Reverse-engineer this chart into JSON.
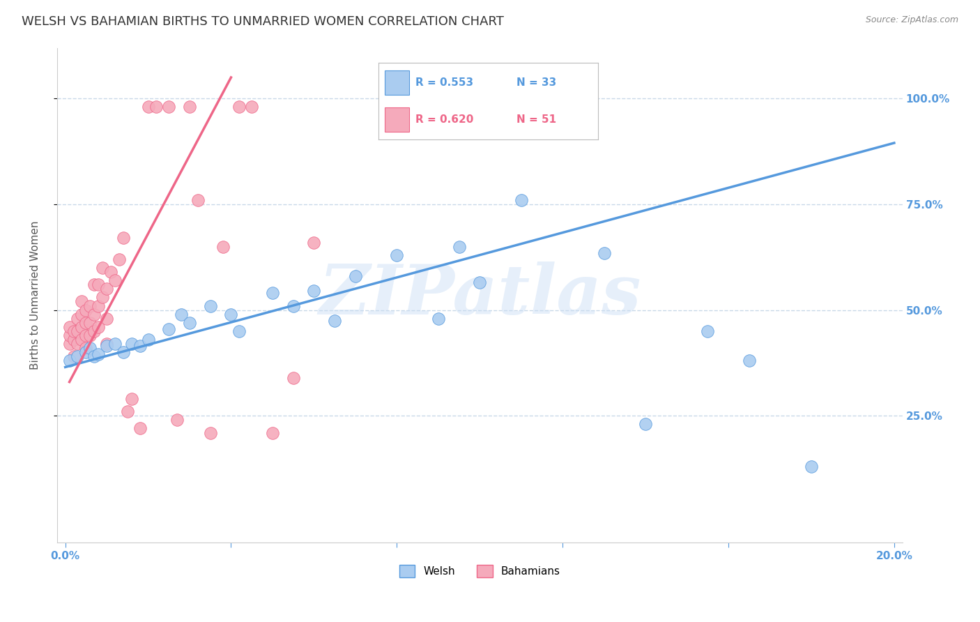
{
  "title": "WELSH VS BAHAMIAN BIRTHS TO UNMARRIED WOMEN CORRELATION CHART",
  "source": "Source: ZipAtlas.com",
  "ylabel": "Births to Unmarried Women",
  "xlim": [
    -0.002,
    0.202
  ],
  "ylim": [
    -0.05,
    1.12
  ],
  "yticks": [
    0.25,
    0.5,
    0.75,
    1.0
  ],
  "ytick_labels": [
    "25.0%",
    "50.0%",
    "75.0%",
    "100.0%"
  ],
  "xtick_positions": [
    0.0,
    0.04,
    0.08,
    0.12,
    0.16,
    0.2
  ],
  "xtick_labels": [
    "0.0%",
    "",
    "",
    "",
    "",
    "20.0%"
  ],
  "welsh_color": "#aaccf0",
  "bahamian_color": "#f5aabb",
  "welsh_line_color": "#5599dd",
  "bahamian_line_color": "#ee6688",
  "welsh_R": 0.553,
  "welsh_N": 33,
  "bahamian_R": 0.62,
  "bahamian_N": 51,
  "welsh_scatter_x": [
    0.001,
    0.003,
    0.005,
    0.006,
    0.007,
    0.008,
    0.01,
    0.012,
    0.014,
    0.016,
    0.018,
    0.02,
    0.025,
    0.028,
    0.03,
    0.035,
    0.04,
    0.042,
    0.05,
    0.055,
    0.06,
    0.065,
    0.07,
    0.08,
    0.09,
    0.095,
    0.1,
    0.11,
    0.13,
    0.14,
    0.155,
    0.165,
    0.18
  ],
  "welsh_scatter_y": [
    0.38,
    0.39,
    0.4,
    0.41,
    0.39,
    0.395,
    0.415,
    0.42,
    0.4,
    0.42,
    0.415,
    0.43,
    0.455,
    0.49,
    0.47,
    0.51,
    0.49,
    0.45,
    0.54,
    0.51,
    0.545,
    0.475,
    0.58,
    0.63,
    0.48,
    0.65,
    0.565,
    0.76,
    0.635,
    0.23,
    0.45,
    0.38,
    0.13
  ],
  "bahamian_scatter_x": [
    0.001,
    0.001,
    0.001,
    0.002,
    0.002,
    0.002,
    0.003,
    0.003,
    0.003,
    0.004,
    0.004,
    0.004,
    0.004,
    0.005,
    0.005,
    0.005,
    0.005,
    0.006,
    0.006,
    0.006,
    0.007,
    0.007,
    0.007,
    0.008,
    0.008,
    0.008,
    0.009,
    0.009,
    0.01,
    0.01,
    0.01,
    0.011,
    0.012,
    0.013,
    0.014,
    0.015,
    0.016,
    0.018,
    0.02,
    0.022,
    0.025,
    0.027,
    0.03,
    0.032,
    0.035,
    0.038,
    0.042,
    0.045,
    0.05,
    0.055,
    0.06
  ],
  "bahamian_scatter_y": [
    0.42,
    0.44,
    0.46,
    0.39,
    0.43,
    0.45,
    0.42,
    0.45,
    0.48,
    0.43,
    0.46,
    0.49,
    0.52,
    0.41,
    0.44,
    0.47,
    0.5,
    0.44,
    0.47,
    0.51,
    0.45,
    0.49,
    0.56,
    0.46,
    0.51,
    0.56,
    0.53,
    0.6,
    0.42,
    0.48,
    0.55,
    0.59,
    0.57,
    0.62,
    0.67,
    0.26,
    0.29,
    0.22,
    0.98,
    0.98,
    0.98,
    0.24,
    0.98,
    0.76,
    0.21,
    0.65,
    0.98,
    0.98,
    0.21,
    0.34,
    0.66
  ],
  "welsh_line_x0": 0.0,
  "welsh_line_y0": 0.365,
  "welsh_line_x1": 0.2,
  "welsh_line_y1": 0.895,
  "bahamian_line_x0": 0.001,
  "bahamian_line_y0": 0.33,
  "bahamian_line_x1": 0.04,
  "bahamian_line_y1": 1.05,
  "watermark_text": "ZIPatlas",
  "background_color": "#ffffff",
  "grid_color": "#c8d8e8",
  "tick_color": "#5599dd",
  "title_fontsize": 13,
  "axis_label_fontsize": 11,
  "tick_fontsize": 11,
  "legend_R_color": "#5599dd",
  "legend_R2_color": "#ee6688"
}
